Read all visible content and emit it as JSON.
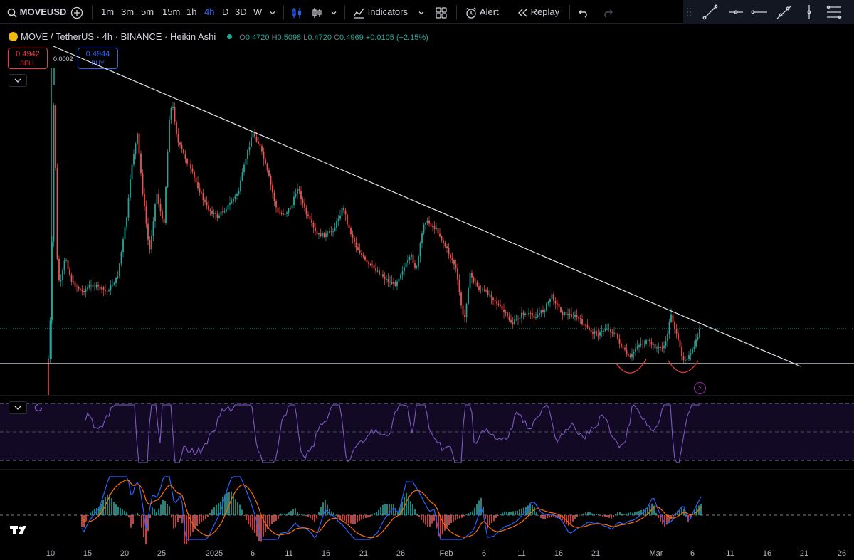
{
  "toolbar": {
    "symbol": "MOVEUSD",
    "intervals": [
      "1m",
      "3m",
      "5m",
      "15m",
      "1h",
      "4h",
      "D",
      "3D",
      "W"
    ],
    "active_interval": "4h",
    "indicators_label": "Indicators",
    "alert_label": "Alert",
    "replay_label": "Replay"
  },
  "legend": {
    "title": "MOVE / TetherUS · 4h · BINANCE · Heikin Ashi",
    "o_label": "O",
    "o": "0.4720",
    "h_label": "H",
    "h": "0.5098",
    "l_label": "L",
    "l": "0.4720",
    "c_label": "C",
    "c": "0.4969",
    "change": "+0.0105 (+2.15%)"
  },
  "trade": {
    "sell_price": "0.4942",
    "sell_label": "SELL",
    "buy_price": "0.4944",
    "buy_label": "BUY",
    "spread": "0.0002"
  },
  "xaxis": {
    "ticks": [
      "10",
      "15",
      "20",
      "25",
      "2025",
      "6",
      "11",
      "16",
      "21",
      "26",
      "Feb",
      "6",
      "11",
      "16",
      "21",
      "Mar",
      "6",
      "11",
      "16",
      "21",
      "26"
    ]
  },
  "colors": {
    "up": "#26a69a",
    "down": "#ef5350",
    "accent": "#2962ff",
    "rsi": "#7e57c2",
    "macd": "#2962ff",
    "signal": "#ff6d00",
    "trendline": "#e0e3eb"
  },
  "icons": {
    "search": "search-icon",
    "add_symbol": "plus-circle-icon",
    "bar_style": "candles-icon",
    "templates": "grid-icon",
    "alert": "alarm-clock-icon",
    "replay": "rewind-icon",
    "undo": "undo-icon",
    "redo": "redo-icon"
  }
}
